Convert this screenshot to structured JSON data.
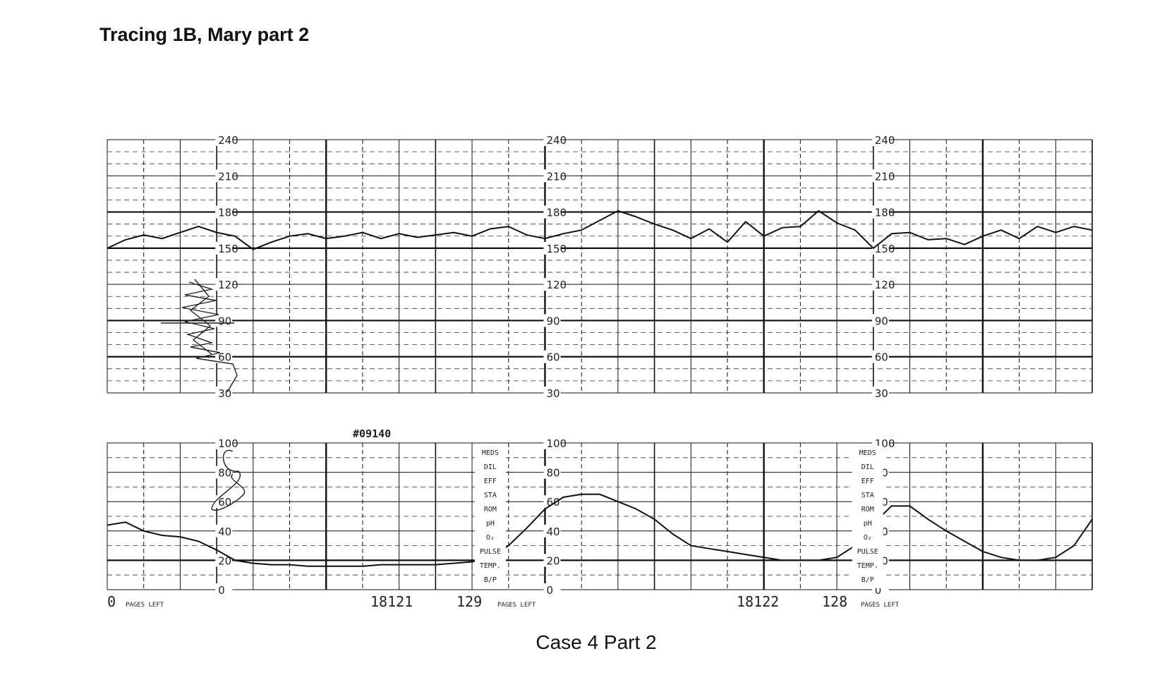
{
  "document": {
    "title": "Tracing 1B, Mary part 2",
    "caption": "Case 4 Part 2"
  },
  "chart_data": [
    {
      "type": "line",
      "panel": "fetal heart rate",
      "y_ticks": [
        240,
        210,
        180,
        150,
        120,
        90,
        60,
        30
      ],
      "ylim": [
        30,
        240
      ],
      "x": [
        0,
        0.5,
        1,
        1.5,
        2,
        2.5,
        3,
        3.5,
        4,
        4.5,
        5,
        5.5,
        6,
        6.5,
        7,
        7.5,
        8,
        8.5,
        9,
        9.5,
        10,
        10.5,
        11,
        11.5,
        12,
        12.5,
        13,
        13.5,
        14,
        14.5,
        15,
        15.5,
        16,
        16.5,
        17,
        17.5,
        18,
        18.5,
        19,
        19.5,
        20,
        20.5,
        21,
        21.5,
        22,
        22.5,
        23,
        23.5,
        24,
        24.5,
        25,
        25.5,
        26,
        26.5,
        27
      ],
      "values": [
        150,
        157,
        161,
        158,
        163,
        168,
        163,
        160,
        149,
        155,
        160,
        162,
        158,
        160,
        163,
        158,
        162,
        159,
        161,
        163,
        160,
        166,
        168,
        161,
        158,
        162,
        165,
        173,
        181,
        176,
        170,
        165,
        158,
        166,
        155,
        172,
        160,
        167,
        168,
        181,
        171,
        165,
        150,
        162,
        163,
        157,
        158,
        153,
        160,
        165,
        158,
        168,
        163,
        168,
        165
      ]
    },
    {
      "type": "line",
      "panel": "uterine activity",
      "y_ticks": [
        100,
        80,
        60,
        40,
        20,
        0
      ],
      "ylim": [
        0,
        100
      ],
      "x": [
        0,
        0.5,
        1,
        1.5,
        2,
        2.5,
        3,
        3.5,
        4,
        4.5,
        5,
        5.5,
        6,
        6.5,
        7,
        7.5,
        8,
        8.5,
        9,
        9.5,
        10,
        10.5,
        11,
        11.5,
        12,
        12.5,
        13,
        13.5,
        14,
        14.5,
        15,
        15.5,
        16,
        16.5,
        17,
        17.5,
        18,
        18.5,
        19,
        19.5,
        20,
        20.5,
        21,
        21.5,
        22,
        22.5,
        23,
        23.5,
        24,
        24.5,
        25,
        25.5,
        26,
        26.5,
        27
      ],
      "values": [
        44,
        46,
        40,
        37,
        36,
        33,
        27,
        20,
        18,
        17,
        17,
        16,
        16,
        16,
        16,
        17,
        17,
        17,
        17,
        18,
        19,
        22,
        30,
        42,
        55,
        63,
        65,
        65,
        60,
        55,
        48,
        38,
        30,
        28,
        26,
        24,
        22,
        20,
        20,
        20,
        22,
        30,
        45,
        57,
        57,
        48,
        40,
        33,
        26,
        22,
        20,
        20,
        22,
        30,
        48
      ]
    }
  ],
  "annotations": {
    "strip_id": "#09140",
    "pages_left_label": "PAGES LEFT",
    "page_counts": [
      "0",
      "129",
      "128"
    ],
    "page_numbers": [
      "18121",
      "18122"
    ],
    "form_fields": [
      "MEDS",
      "DIL",
      "EFF",
      "STA",
      "ROM",
      "pH",
      "O₂",
      "PULSE",
      "TEMP.",
      "B/P"
    ]
  }
}
